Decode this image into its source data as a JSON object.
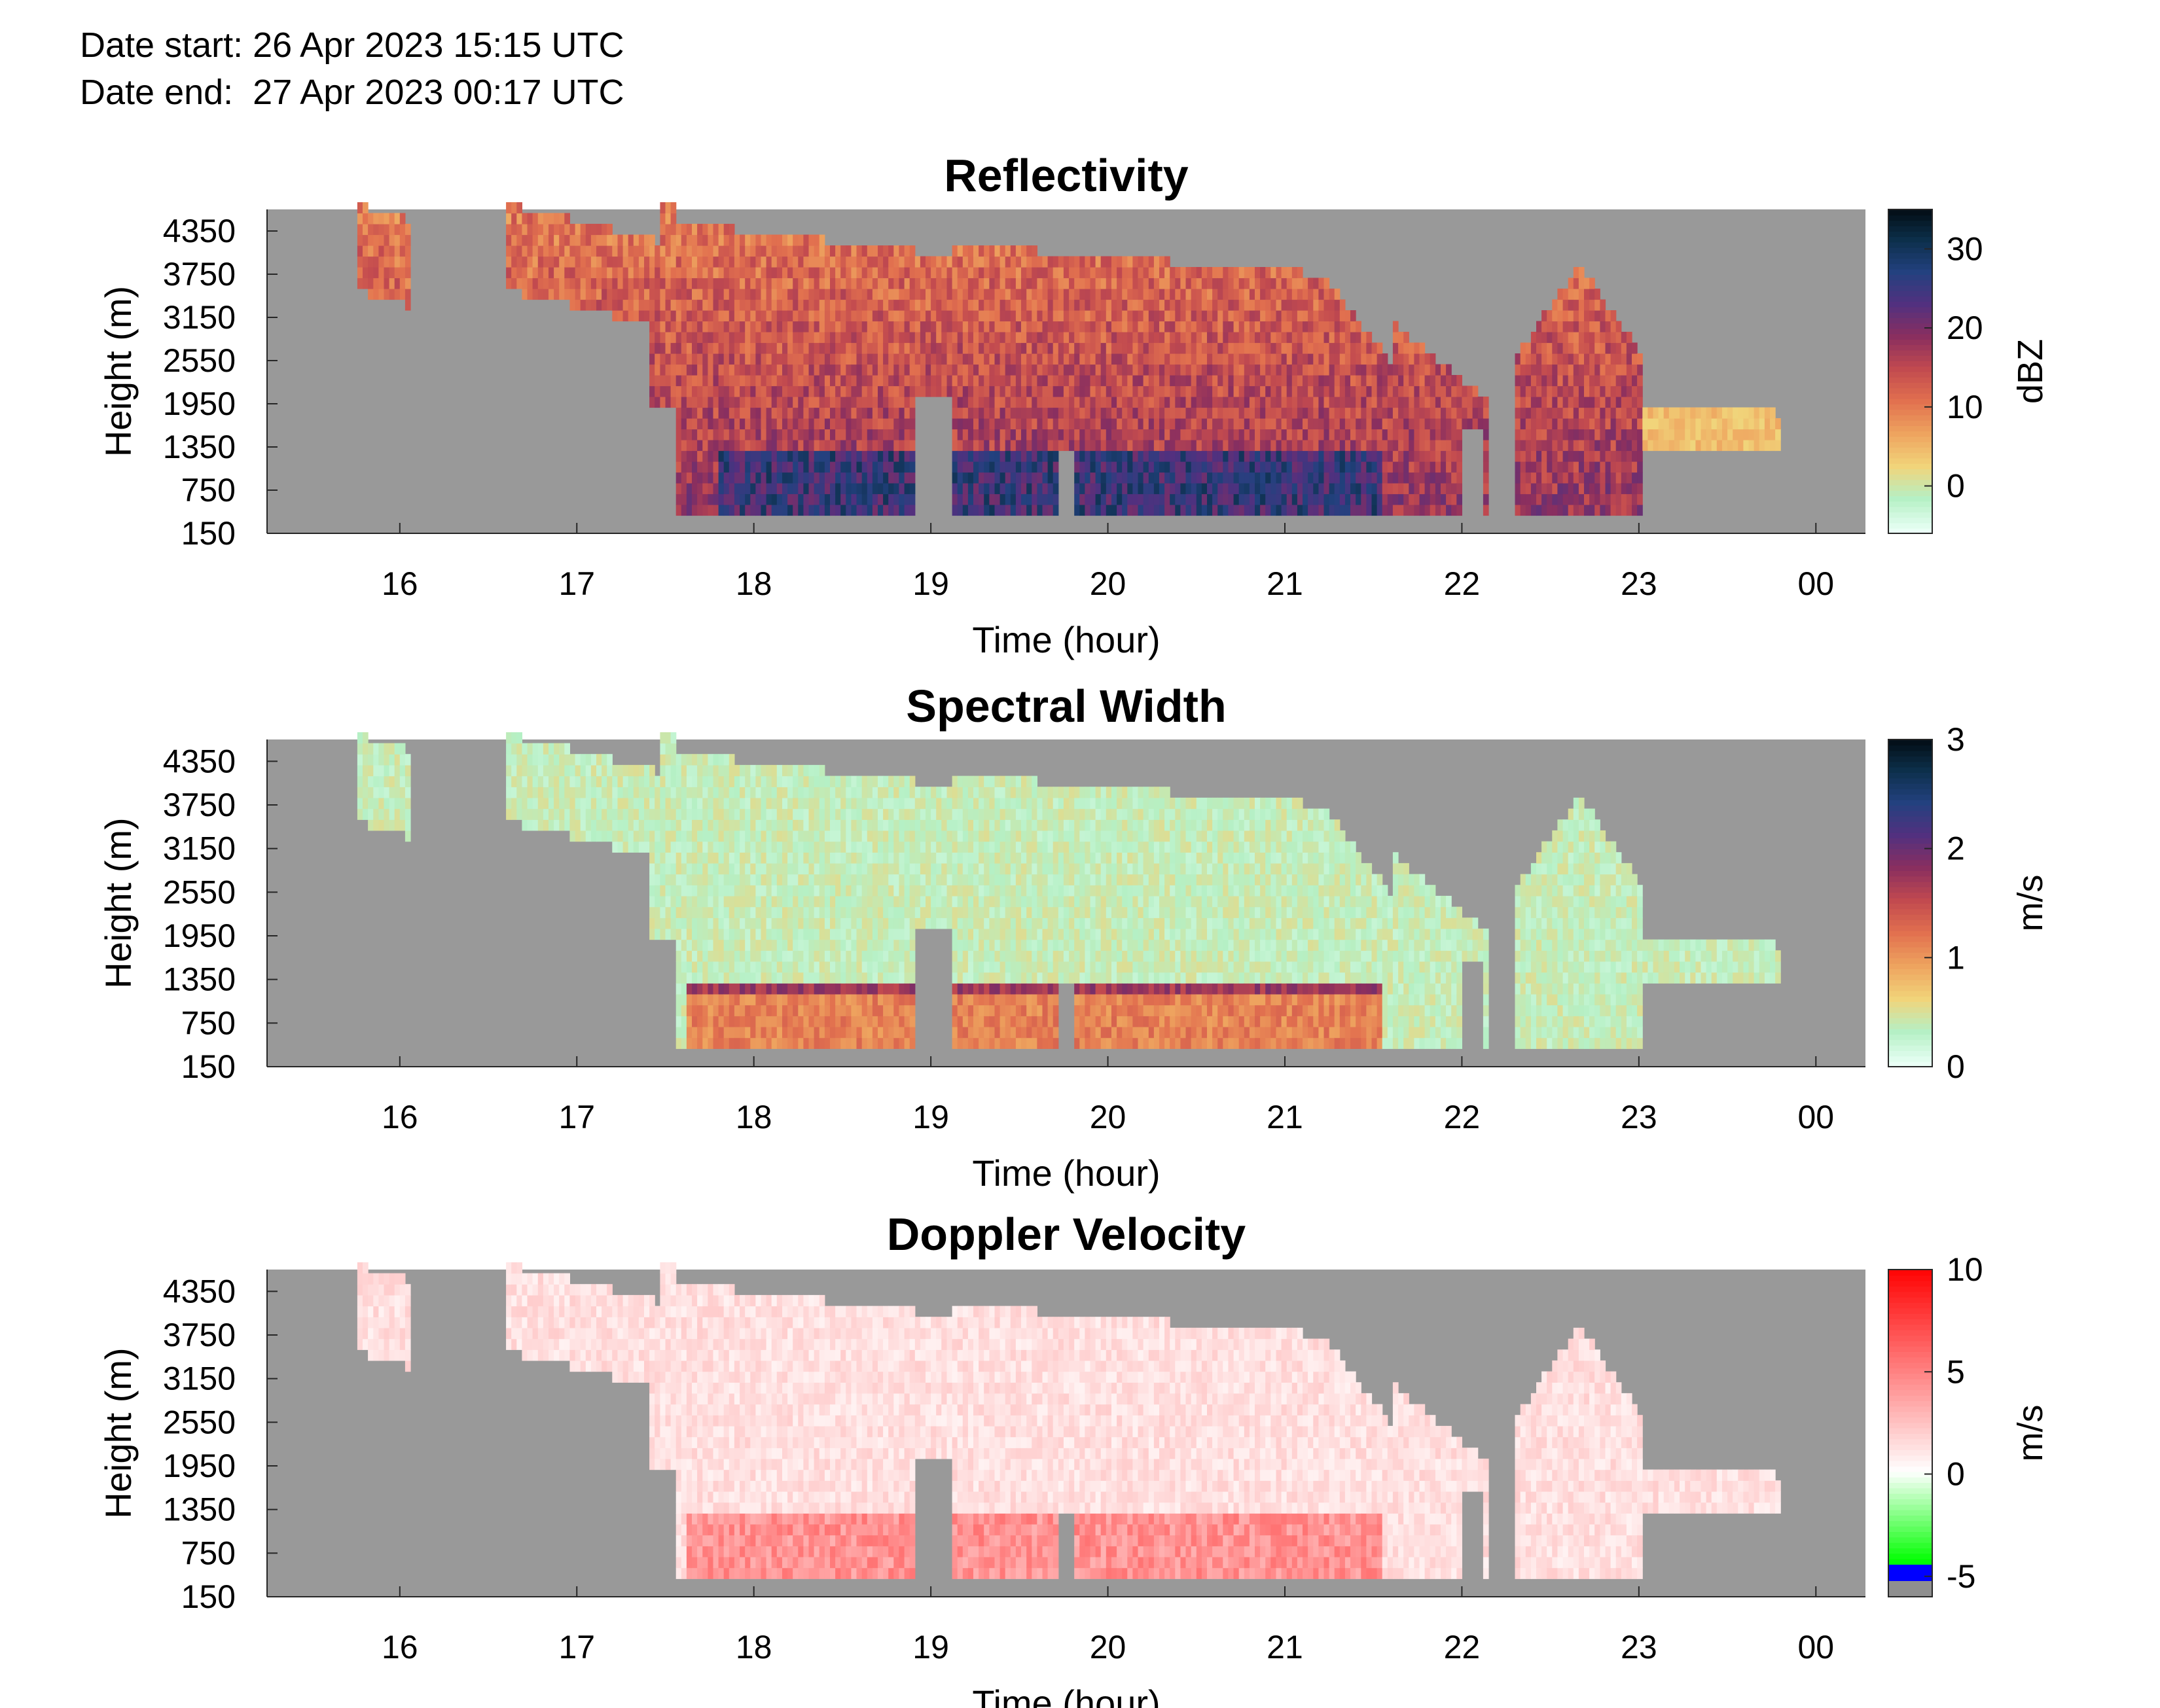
{
  "header": {
    "date_start": "Date start: 26 Apr 2023 15:15 UTC",
    "date_end": "Date end:  27 Apr 2023 00:17 UTC"
  },
  "colors": {
    "background_gray": "#999999",
    "refl_colormap": [
      "#eafff6",
      "#b5f0c5",
      "#f1d47a",
      "#eea45f",
      "#e2714f",
      "#c24a4f",
      "#8a2f5f",
      "#52307f",
      "#23417f",
      "#0c2f4a",
      "#020a10"
    ],
    "sw_colormap": [
      "#eafff6",
      "#b5f0c5",
      "#f1d47a",
      "#eea45f",
      "#e2714f",
      "#c24a4f",
      "#8a2f5f",
      "#52307f",
      "#23417f",
      "#0c2f4a",
      "#020a10"
    ],
    "vel_colormap": [
      "#8f8f8f",
      "#0000ff",
      "#00ff00",
      "#ffffff",
      "#ff0000"
    ]
  },
  "chart_data": [
    {
      "type": "heatmap",
      "title": "Reflectivity",
      "xlabel": "Time (hour)",
      "ylabel": "Height (m)",
      "x_ticks": [
        "16",
        "17",
        "18",
        "19",
        "20",
        "21",
        "22",
        "23",
        "00"
      ],
      "y_ticks": [
        "4350",
        "3750",
        "3150",
        "2550",
        "1950",
        "1350",
        "750",
        "150"
      ],
      "xlim": [
        15.25,
        24.28
      ],
      "ylim": [
        150,
        4650
      ],
      "colorbar": {
        "label": "dBZ",
        "ticks": [
          "30",
          "20",
          "10",
          "0"
        ],
        "range": [
          -6,
          35
        ]
      },
      "cloud_layers": [
        {
          "time_start": 17.55,
          "time_end": 21.6,
          "height_bottom": 400,
          "height_top": 4350,
          "dbz_mean": 12
        },
        {
          "time_start": 17.8,
          "time_end": 21.55,
          "height_bottom": 400,
          "height_top": 1250,
          "dbz_mean": 25
        },
        {
          "time_start": 21.6,
          "time_end": 22.15,
          "height_bottom": 400,
          "height_top": 1950,
          "dbz_mean": 8
        },
        {
          "time_start": 22.35,
          "time_end": 23.0,
          "height_bottom": 400,
          "height_top": 3750,
          "dbz_mean": 14
        },
        {
          "time_start": 23.0,
          "time_end": 23.75,
          "height_bottom": 1200,
          "height_top": 1900,
          "dbz_mean": 3
        }
      ]
    },
    {
      "type": "heatmap",
      "title": "Spectral Width",
      "xlabel": "Time (hour)",
      "ylabel": "Height (m)",
      "x_ticks": [
        "16",
        "17",
        "18",
        "19",
        "20",
        "21",
        "22",
        "23",
        "00"
      ],
      "y_ticks": [
        "4350",
        "3750",
        "3150",
        "2550",
        "1950",
        "1350",
        "750",
        "150"
      ],
      "xlim": [
        15.25,
        24.28
      ],
      "ylim": [
        150,
        4650
      ],
      "colorbar": {
        "label": "m/s",
        "ticks": [
          "3",
          "2",
          "1",
          "0"
        ],
        "range": [
          0,
          3
        ]
      },
      "cloud_layers": [
        {
          "time_start": 17.55,
          "time_end": 21.6,
          "height_bottom": 1350,
          "height_top": 4350,
          "sw_mean": 0.3
        },
        {
          "time_start": 17.6,
          "time_end": 21.55,
          "height_bottom": 400,
          "height_top": 1300,
          "sw_mean": 1.2
        }
      ]
    },
    {
      "type": "heatmap",
      "title": "Doppler Velocity",
      "xlabel": "Time (hour)",
      "ylabel": "Height (m)",
      "x_ticks": [
        "16",
        "17",
        "18",
        "19",
        "20",
        "21",
        "22",
        "23",
        "00"
      ],
      "y_ticks": [
        "4350",
        "3750",
        "3150",
        "2550",
        "1950",
        "1350",
        "750",
        "150"
      ],
      "xlim": [
        15.25,
        24.28
      ],
      "ylim": [
        150,
        4650
      ],
      "colorbar": {
        "label": "m/s",
        "ticks": [
          "10",
          "5",
          "0",
          "-5"
        ],
        "range": [
          -6,
          10
        ]
      },
      "cloud_layers": [
        {
          "time_start": 17.55,
          "time_end": 21.6,
          "height_bottom": 1350,
          "height_top": 4350,
          "velocity_mean": 1.0
        },
        {
          "time_start": 17.6,
          "time_end": 21.55,
          "height_bottom": 400,
          "height_top": 1300,
          "velocity_mean": 4.0
        }
      ]
    }
  ]
}
